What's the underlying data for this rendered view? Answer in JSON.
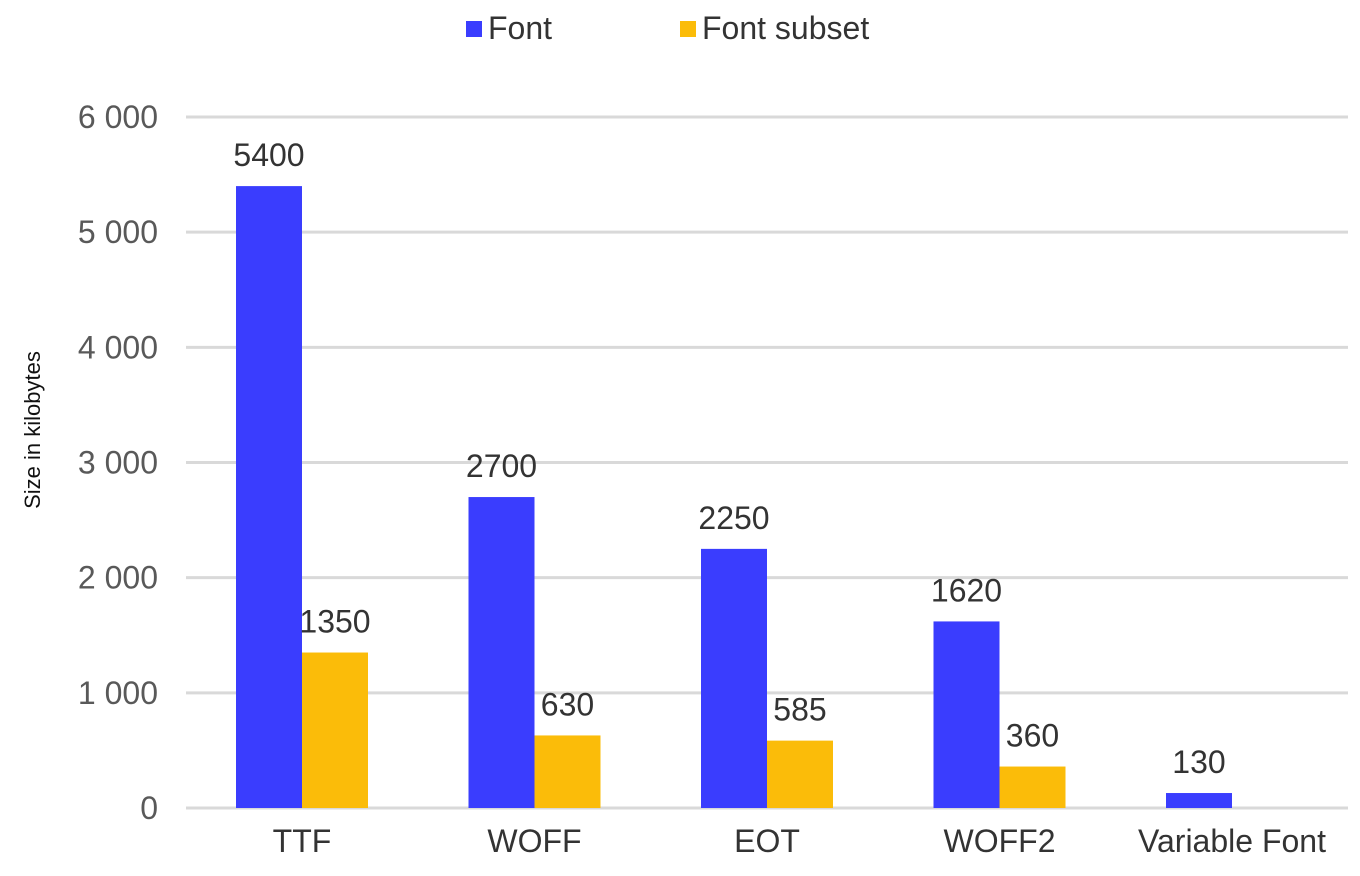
{
  "chart_data": {
    "type": "bar",
    "title": "",
    "xlabel": "",
    "ylabel": "Size in kilobytes",
    "categories": [
      "TTF",
      "WOFF",
      "EOT",
      "WOFF2",
      "Variable Font"
    ],
    "series": [
      {
        "name": "Font",
        "color": "#3a3dfe",
        "values": [
          5400,
          2700,
          2250,
          1620,
          130
        ]
      },
      {
        "name": "Font subset",
        "color": "#fbbc09",
        "values": [
          1350,
          630,
          585,
          360,
          null
        ]
      }
    ],
    "ylim": [
      0,
      6000
    ],
    "yticks": [
      {
        "value": 0,
        "label": "0"
      },
      {
        "value": 1000,
        "label": "1 000"
      },
      {
        "value": 2000,
        "label": "2 000"
      },
      {
        "value": 3000,
        "label": "3 000"
      },
      {
        "value": 4000,
        "label": "4 000"
      },
      {
        "value": 5000,
        "label": "5 000"
      },
      {
        "value": 6000,
        "label": "6 000"
      }
    ],
    "grid": true,
    "legend_position": "top-center",
    "data_labels": true
  }
}
